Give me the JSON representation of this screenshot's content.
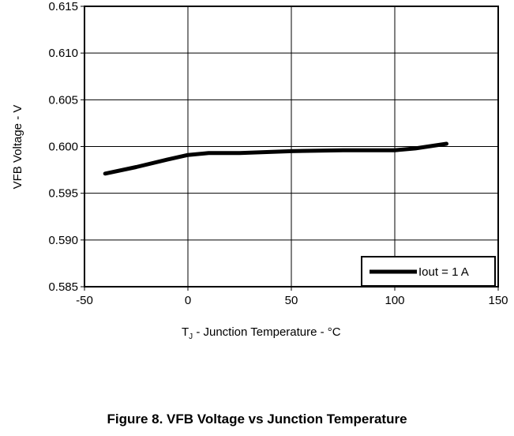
{
  "chart_data": {
    "type": "line",
    "caption": "Figure 8. VFB Voltage vs Junction Temperature",
    "xlabel_main": "T",
    "xlabel_sub": "J",
    "xlabel_rest": "  - Junction  Temperature - °C",
    "ylabel": "VFB Voltage - V",
    "xlim": [
      -50,
      150
    ],
    "ylim": [
      0.585,
      0.615
    ],
    "x_ticks": [
      -50,
      0,
      50,
      100,
      150
    ],
    "x_tick_labels": [
      "-50",
      "0",
      "50",
      "100",
      "150"
    ],
    "y_ticks": [
      0.585,
      0.59,
      0.595,
      0.6,
      0.605,
      0.61,
      0.615
    ],
    "y_tick_labels": [
      "0.585",
      "0.590",
      "0.595",
      "0.600",
      "0.605",
      "0.610",
      "0.615"
    ],
    "grid": true,
    "legend_position": "bottom-right",
    "series": [
      {
        "name": "Iout = 1 A",
        "color": "#000000",
        "x": [
          -40,
          -25,
          -10,
          0,
          10,
          25,
          50,
          75,
          100,
          110,
          125
        ],
        "y": [
          0.5971,
          0.5978,
          0.5986,
          0.5991,
          0.5993,
          0.5993,
          0.5995,
          0.5996,
          0.5996,
          0.5998,
          0.6003
        ]
      }
    ]
  }
}
